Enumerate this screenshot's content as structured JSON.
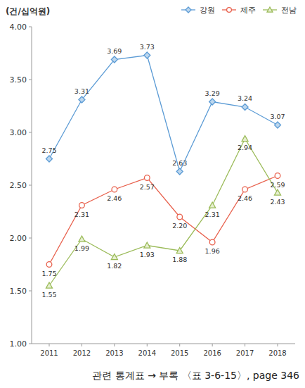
{
  "chart_data": {
    "type": "line",
    "y_label": "(건/십억원)",
    "footnote": "관련 통계표 → 부록 〈표 3-6-15〉, page 346",
    "categories": [
      "2011",
      "2012",
      "2013",
      "2014",
      "2015",
      "2016",
      "2017",
      "2018"
    ],
    "series": [
      {
        "name": "강원",
        "color": "#5b9bd5",
        "marker": "diamond",
        "line_style": "solid",
        "values": [
          2.75,
          3.31,
          3.69,
          3.73,
          2.63,
          3.29,
          3.24,
          3.07
        ],
        "value_labels": [
          "2.75",
          "3.31",
          "3.69",
          "3.73",
          "2.63",
          "3.29",
          "3.24",
          "3.07"
        ]
      },
      {
        "name": "제주",
        "color": "#e8604c",
        "marker": "circle",
        "line_style": "solid",
        "values": [
          1.75,
          2.31,
          2.46,
          2.57,
          2.2,
          1.96,
          2.46,
          2.59
        ],
        "value_labels": [
          "1.75",
          "2.31",
          "2.46",
          "2.57",
          "2.20",
          "1.96",
          "2.46",
          "2.59"
        ]
      },
      {
        "name": "전남",
        "color": "#9bbb59",
        "marker": "triangle",
        "line_style": "solid",
        "values": [
          1.55,
          1.99,
          1.82,
          1.93,
          1.88,
          2.31,
          2.94,
          2.43
        ],
        "value_labels": [
          "1.55",
          "1.99",
          "1.82",
          "1.93",
          "1.88",
          "2.31",
          "2.94",
          "2.43"
        ]
      }
    ],
    "ylim": [
      1.0,
      4.0
    ],
    "yticks": [
      {
        "value": 1.0,
        "label": "1.00"
      },
      {
        "value": 1.5,
        "label": "1.50"
      },
      {
        "value": 2.0,
        "label": "2.00"
      },
      {
        "value": 2.5,
        "label": "2.50"
      },
      {
        "value": 3.0,
        "label": "3.00"
      },
      {
        "value": 3.5,
        "label": "3.50"
      },
      {
        "value": 4.0,
        "label": "4.00"
      }
    ],
    "grid": false,
    "legend": "top-right",
    "data_labels": true
  }
}
